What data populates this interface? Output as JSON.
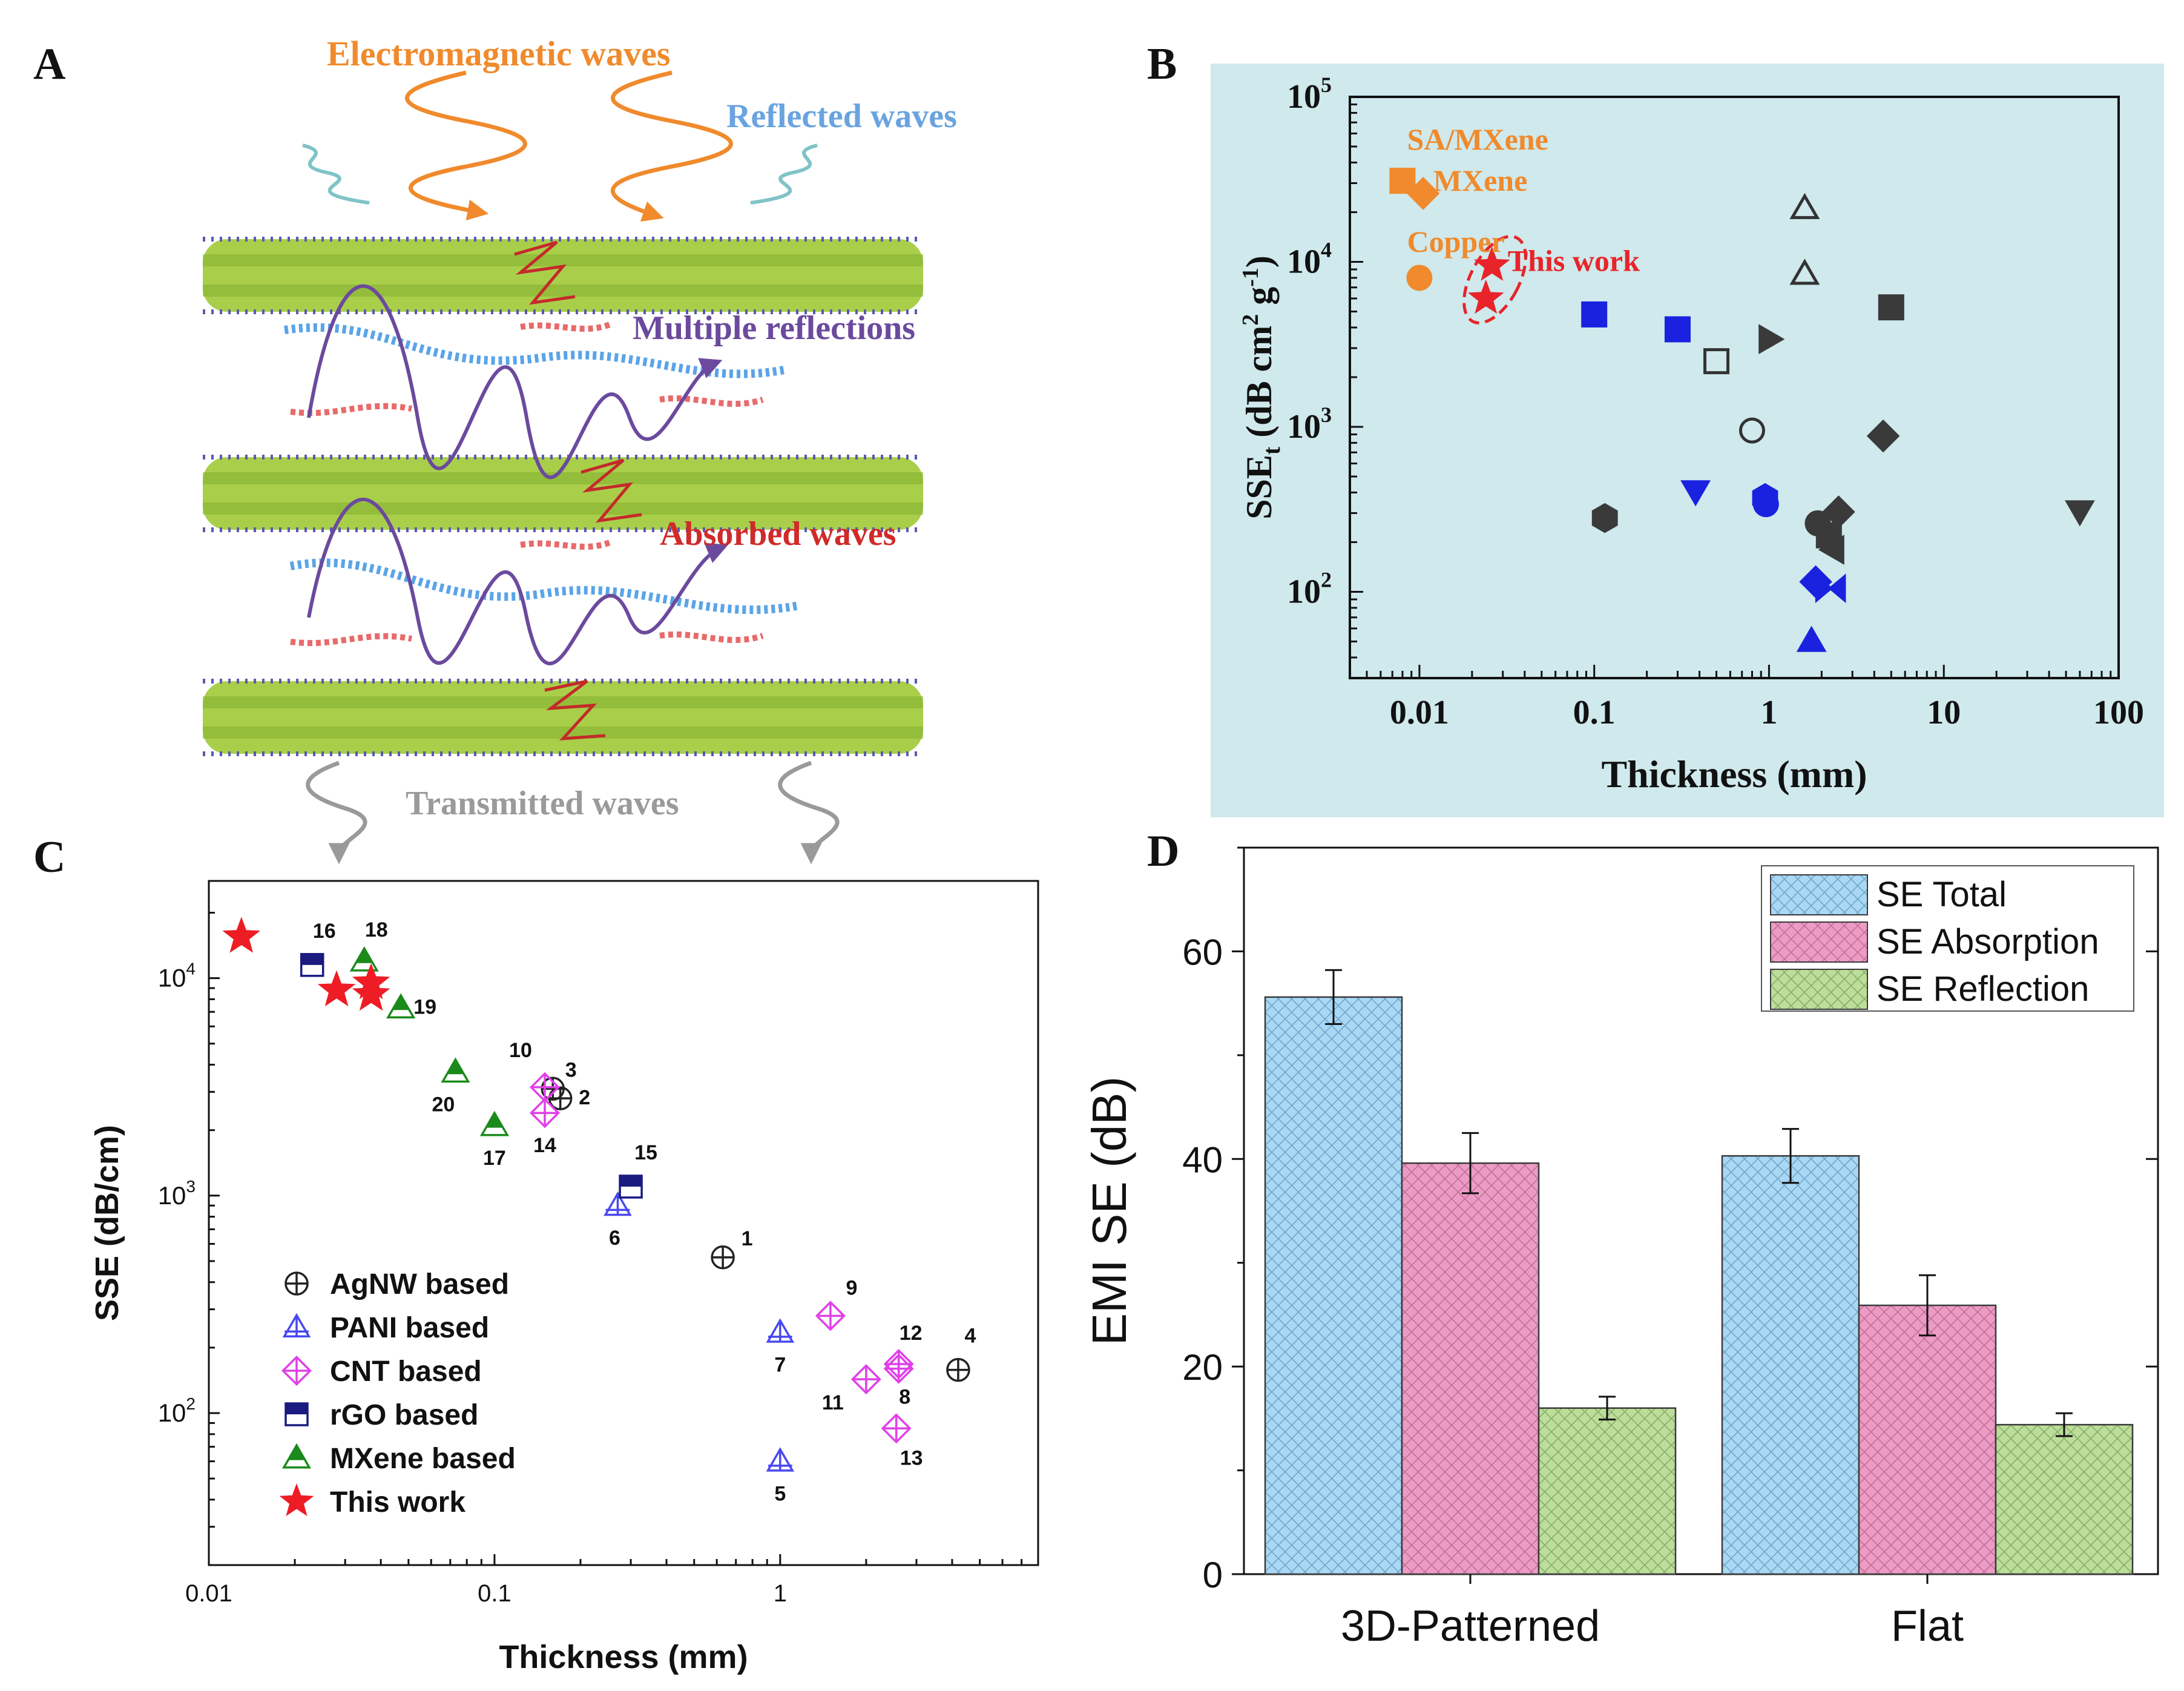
{
  "panel_labels": {
    "a": "A",
    "b": "B",
    "c": "C",
    "d": "D"
  },
  "panel_a": {
    "labels": {
      "electromagnetic": "Electromagnetic  waves",
      "reflected": "Reflected waves",
      "multiple": "Multiple reflections",
      "absorbed": "Absorbed waves",
      "transmitted": "Transmitted waves"
    },
    "colors": {
      "orange": "#f08a2c",
      "blue": "#6aa3e0",
      "purple": "#6b4a9e",
      "red": "#d02a2a",
      "gray": "#9a9a9a",
      "green": "#9cc63a"
    }
  },
  "chart_data": [
    {
      "id": "B",
      "type": "scatter",
      "title": "",
      "xlabel": "Thickness (mm)",
      "ylabel_main": "SSE",
      "ylabel_sub": "t",
      "ylabel_rest": " (dB cm",
      "ylabel_sup2": "2",
      "ylabel_g": " g",
      "ylabel_sup1": "-1",
      "ylabel_end": ")",
      "xscale": "log",
      "yscale": "log",
      "xlim": [
        0.004,
        100
      ],
      "ylim": [
        30,
        100000
      ],
      "xticks": [
        0.01,
        0.1,
        1,
        10,
        100
      ],
      "xtick_labels": [
        "0.01",
        "0.1",
        "1",
        "10",
        "100"
      ],
      "yticks": [
        100,
        1000,
        10000,
        100000
      ],
      "ytick_base": "10",
      "ytick_exps": [
        "2",
        "3",
        "4",
        "5"
      ],
      "background": "#cfe9ec",
      "annotations": [
        {
          "text": "SA/MXene",
          "x": 0.0085,
          "y": 48000,
          "color": "#f08a2c"
        },
        {
          "text": "MXene",
          "x": 0.012,
          "y": 27000,
          "color": "#f08a2c"
        },
        {
          "text": "Copper",
          "x": 0.0085,
          "y": 11500,
          "color": "#f08a2c"
        },
        {
          "text": "This work",
          "x": 0.032,
          "y": 8800,
          "color": "#e8242a"
        }
      ],
      "ellipse": {
        "x": 0.027,
        "y": 7800,
        "color": "#e8242a"
      },
      "points": [
        {
          "x": 0.008,
          "y": 31000,
          "marker": "square",
          "color": "#f08a2c",
          "fill": true
        },
        {
          "x": 0.0105,
          "y": 26000,
          "marker": "diamond",
          "color": "#f08a2c",
          "fill": true
        },
        {
          "x": 0.01,
          "y": 8000,
          "marker": "circle",
          "color": "#f08a2c",
          "fill": true
        },
        {
          "x": 0.026,
          "y": 9500,
          "marker": "star",
          "color": "#e8242a",
          "fill": true
        },
        {
          "x": 0.024,
          "y": 6000,
          "marker": "star",
          "color": "#e8242a",
          "fill": true
        },
        {
          "x": 0.1,
          "y": 4800,
          "marker": "square",
          "color": "#1a22e0",
          "fill": true
        },
        {
          "x": 0.3,
          "y": 3900,
          "marker": "square",
          "color": "#1a22e0",
          "fill": true
        },
        {
          "x": 0.5,
          "y": 2500,
          "marker": "square",
          "color": "#333333",
          "fill": false
        },
        {
          "x": 1.6,
          "y": 21000,
          "marker": "triangle-up",
          "color": "#333333",
          "fill": false
        },
        {
          "x": 1.6,
          "y": 8400,
          "marker": "triangle-up",
          "color": "#333333",
          "fill": false
        },
        {
          "x": 1.0,
          "y": 3400,
          "marker": "triangle-right",
          "color": "#3a3a3a",
          "fill": true
        },
        {
          "x": 5.0,
          "y": 5300,
          "marker": "square",
          "color": "#3a3a3a",
          "fill": true
        },
        {
          "x": 0.8,
          "y": 950,
          "marker": "circle",
          "color": "#333333",
          "fill": false
        },
        {
          "x": 4.5,
          "y": 880,
          "marker": "diamond",
          "color": "#3a3a3a",
          "fill": true
        },
        {
          "x": 0.38,
          "y": 410,
          "marker": "triangle-down",
          "color": "#1a22e0",
          "fill": true
        },
        {
          "x": 0.95,
          "y": 370,
          "marker": "hexagon",
          "color": "#1a22e0",
          "fill": true
        },
        {
          "x": 0.96,
          "y": 340,
          "marker": "circle",
          "color": "#1a22e0",
          "fill": true
        },
        {
          "x": 0.115,
          "y": 280,
          "marker": "hexagon",
          "color": "#3a3a3a",
          "fill": true
        },
        {
          "x": 60,
          "y": 310,
          "marker": "triangle-down",
          "color": "#3a3a3a",
          "fill": true
        },
        {
          "x": 2.5,
          "y": 305,
          "marker": "diamond",
          "color": "#3a3a3a",
          "fill": true
        },
        {
          "x": 1.9,
          "y": 260,
          "marker": "circle",
          "color": "#3a3a3a",
          "fill": true
        },
        {
          "x": 2.2,
          "y": 220,
          "marker": "square",
          "color": "#3a3a3a",
          "fill": true
        },
        {
          "x": 2.35,
          "y": 180,
          "marker": "triangle-left",
          "color": "#3a3a3a",
          "fill": true
        },
        {
          "x": 1.85,
          "y": 115,
          "marker": "diamond",
          "color": "#1a22e0",
          "fill": true
        },
        {
          "x": 2.25,
          "y": 105,
          "marker": "bowtie",
          "color": "#1a22e0",
          "fill": true
        },
        {
          "x": 1.75,
          "y": 50,
          "marker": "triangle-up",
          "color": "#1a22e0",
          "fill": true
        }
      ]
    },
    {
      "id": "C",
      "type": "scatter",
      "title": "",
      "xlabel": "Thickness (mm)",
      "ylabel": "SSE (dB/cm)",
      "xscale": "log",
      "yscale": "log",
      "xlim": [
        0.01,
        8
      ],
      "ylim": [
        20,
        28000
      ],
      "xticks": [
        0.01,
        0.1,
        1
      ],
      "xtick_labels": [
        "0.01",
        "0.1",
        "1"
      ],
      "yticks": [
        100,
        1000,
        10000
      ],
      "ytick_base": "10",
      "ytick_exps": [
        "2",
        "3",
        "4"
      ],
      "legend_position": "lower-left",
      "series": [
        {
          "name": "AgNW based",
          "marker": "circle-cross",
          "color": "#222222",
          "points": [
            {
              "x": 0.63,
              "y": 520,
              "label": "1"
            },
            {
              "x": 0.17,
              "y": 2800,
              "label": "2"
            },
            {
              "x": 0.16,
              "y": 3100,
              "label": "3"
            },
            {
              "x": 4.2,
              "y": 158,
              "label": "4"
            }
          ]
        },
        {
          "name": "PANI based",
          "marker": "triangle-cross",
          "color": "#4848f0",
          "points": [
            {
              "x": 1.0,
              "y": 60,
              "label": "5"
            },
            {
              "x": 0.27,
              "y": 900,
              "label": "6"
            },
            {
              "x": 1.0,
              "y": 235,
              "label": "7"
            }
          ]
        },
        {
          "name": "CNT based",
          "marker": "diamond-cross",
          "color": "#e040e8",
          "points": [
            {
              "x": 2.6,
              "y": 160,
              "label": "8"
            },
            {
              "x": 1.5,
              "y": 280,
              "label": "9"
            },
            {
              "x": 0.15,
              "y": 3150,
              "label": "10"
            },
            {
              "x": 2.0,
              "y": 143,
              "label": "11"
            },
            {
              "x": 2.6,
              "y": 168,
              "label": "12"
            },
            {
              "x": 2.55,
              "y": 85,
              "label": "13"
            },
            {
              "x": 0.15,
              "y": 2400,
              "label": "14"
            }
          ]
        },
        {
          "name": "rGO based",
          "marker": "half-square",
          "color": "#1a1a80",
          "points": [
            {
              "x": 0.3,
              "y": 1100,
              "label": "15"
            },
            {
              "x": 0.023,
              "y": 11500,
              "label": "16"
            }
          ]
        },
        {
          "name": "MXene based",
          "marker": "half-triangle",
          "color": "#1a8a1a",
          "points": [
            {
              "x": 0.1,
              "y": 2100,
              "label": "17"
            },
            {
              "x": 0.035,
              "y": 12000,
              "label": "18"
            },
            {
              "x": 0.047,
              "y": 7300,
              "label": "19"
            },
            {
              "x": 0.073,
              "y": 3700,
              "label": "20"
            }
          ]
        },
        {
          "name": "This work",
          "marker": "star",
          "color": "#ee1c24",
          "points": [
            {
              "x": 0.013,
              "y": 15500,
              "label": ""
            },
            {
              "x": 0.028,
              "y": 8800,
              "label": ""
            },
            {
              "x": 0.037,
              "y": 9500,
              "label": ""
            },
            {
              "x": 0.037,
              "y": 8400,
              "label": ""
            }
          ]
        }
      ]
    },
    {
      "id": "D",
      "type": "bar",
      "title": "",
      "xlabel": "",
      "ylabel": "EMI SE (dB)",
      "categories": [
        "3D-Patterned",
        "Flat"
      ],
      "ylim": [
        0,
        70
      ],
      "yticks": [
        0,
        20,
        40,
        60
      ],
      "ytick_labels": [
        "0",
        "20",
        "40",
        "60"
      ],
      "legend_position": "top-right",
      "series": [
        {
          "name": "SE Total",
          "values": [
            55.6,
            40.3
          ],
          "errors": [
            2.6,
            2.6
          ],
          "color": "#a9d8f4",
          "hatch": "#5a8fb8"
        },
        {
          "name": "SE Absorption",
          "values": [
            39.6,
            25.9
          ],
          "errors": [
            2.9,
            2.9
          ],
          "color": "#ec9cc4",
          "hatch": "#b05a86"
        },
        {
          "name": "SE Reflection",
          "values": [
            16.0,
            14.4
          ],
          "errors": [
            1.1,
            1.1
          ],
          "color": "#bddd9a",
          "hatch": "#6f9a52"
        }
      ]
    }
  ]
}
